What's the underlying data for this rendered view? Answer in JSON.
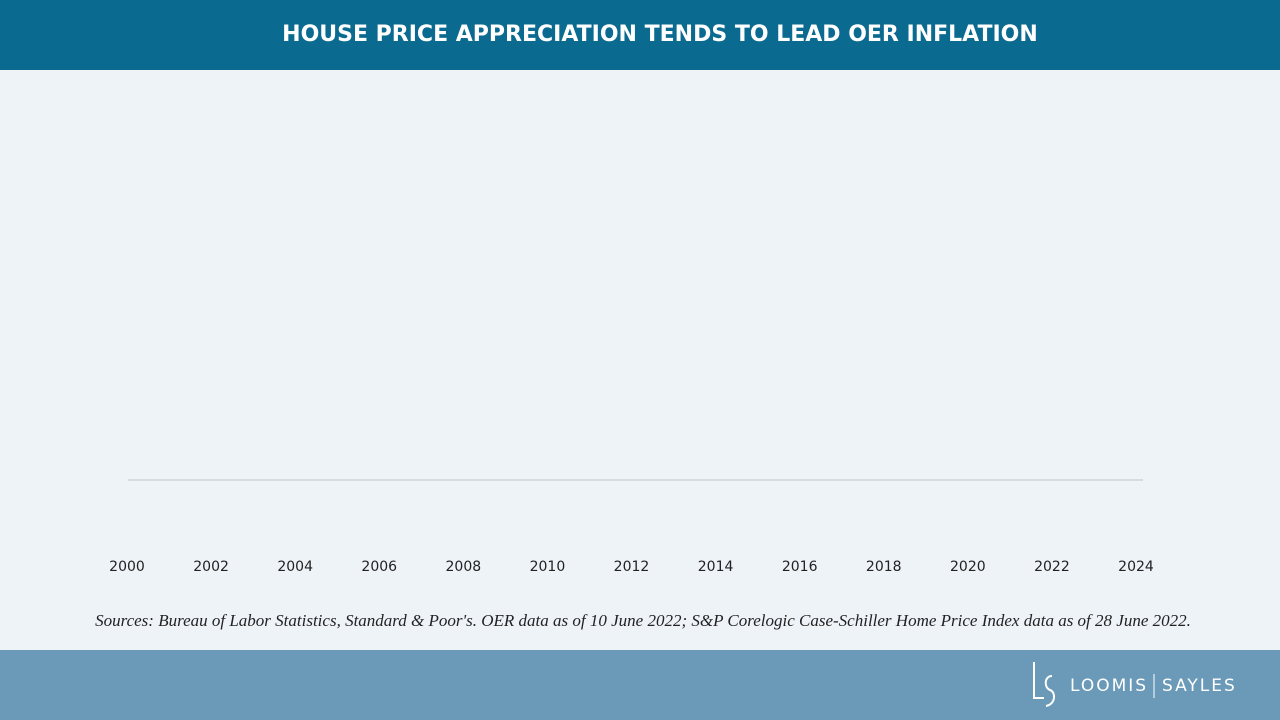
{
  "chart_data": {
    "type": "line",
    "title": "HOUSE PRICE APPRECIATION TENDS TO LEAD OER INFLATION",
    "xlim": [
      2000,
      2024
    ],
    "xticks": [
      2000,
      2002,
      2004,
      2006,
      2008,
      2010,
      2012,
      2014,
      2016,
      2018,
      2020,
      2022,
      2024
    ],
    "source": "Sources: Bureau of Labor Statistics, Standard & Poor's. OER data as of 10 June 2022; S&P Corelogic Case-Schiller Home Price Index data as of 28 June 2022."
  },
  "footer": {
    "logo_left": "LOOMIS",
    "logo_right": "SAYLES"
  }
}
